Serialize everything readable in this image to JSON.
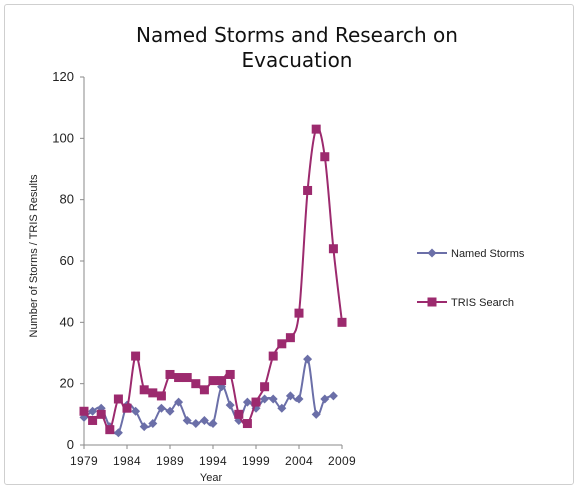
{
  "chart_data": {
    "type": "line",
    "title_lines": [
      "Named Storms and Research on",
      "Evacuation"
    ],
    "xlabel": "Year",
    "ylabel": "Number of Storms / TRIS Results",
    "ylim": [
      0,
      120
    ],
    "yticks": [
      "0",
      "20",
      "40",
      "60",
      "80",
      "100",
      "120"
    ],
    "xlim": [
      1979,
      2009
    ],
    "xticks": [
      "1979",
      "1984",
      "1989",
      "1994",
      "1999",
      "2004",
      "2009"
    ],
    "grid": false,
    "legend_position": "right",
    "series": [
      {
        "name": "Named Storms",
        "color": "#6b6fa8",
        "marker": "diamond",
        "x": [
          1979,
          1980,
          1981,
          1982,
          1983,
          1984,
          1985,
          1986,
          1987,
          1988,
          1989,
          1990,
          1991,
          1992,
          1993,
          1994,
          1995,
          1996,
          1997,
          1998,
          1999,
          2000,
          2001,
          2002,
          2003,
          2004,
          2005,
          2006,
          2007,
          2008
        ],
        "values": [
          9,
          11,
          12,
          6,
          4,
          13,
          11,
          6,
          7,
          12,
          11,
          14,
          8,
          7,
          8,
          7,
          19,
          13,
          8,
          14,
          12,
          15,
          15,
          12,
          16,
          15,
          28,
          10,
          15,
          16
        ]
      },
      {
        "name": "TRIS Search",
        "color": "#9c2a6e",
        "marker": "square",
        "x": [
          1979,
          1980,
          1981,
          1982,
          1983,
          1984,
          1985,
          1986,
          1987,
          1988,
          1989,
          1990,
          1991,
          1992,
          1993,
          1994,
          1995,
          1996,
          1997,
          1998,
          1999,
          2000,
          2001,
          2002,
          2003,
          2004,
          2005,
          2006,
          2007,
          2008,
          2009
        ],
        "values": [
          11,
          8,
          10,
          5,
          15,
          12,
          29,
          18,
          17,
          16,
          23,
          22,
          22,
          20,
          18,
          21,
          21,
          23,
          10,
          7,
          14,
          19,
          29,
          33,
          35,
          43,
          83,
          103,
          94,
          64,
          40
        ]
      }
    ]
  }
}
